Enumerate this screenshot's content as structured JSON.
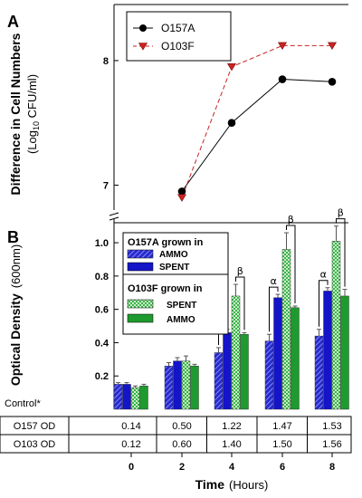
{
  "chart_data": [
    {
      "type": "line",
      "panel_label": "A",
      "ylabel": "Difference in Cell Numbers",
      "ylabel_unit_prefix": "(Log",
      "ylabel_unit_sub": "10",
      "ylabel_unit_suffix": " CFU/ml)",
      "ylim": [
        6.8,
        8.45
      ],
      "yticks": [
        "7",
        "8"
      ],
      "x": [
        2,
        4,
        6,
        8
      ],
      "series": [
        {
          "name": "O157A",
          "values": [
            6.95,
            7.5,
            7.85,
            7.83
          ],
          "color": "#000000",
          "marker": "circle",
          "line": "solid"
        },
        {
          "name": "O103F",
          "values": [
            6.9,
            7.95,
            8.12,
            8.12
          ],
          "color": "#cc2222",
          "marker": "triangle-down",
          "line": "dashed"
        }
      ]
    },
    {
      "type": "bar",
      "panel_label": "B",
      "ylabel": "Optical Density",
      "ylabel_unit": "(600nm)",
      "ylim": [
        0,
        1.12
      ],
      "yticks": [
        "0.2",
        "0.4",
        "0.6",
        "0.8",
        "1.0"
      ],
      "xlabel": "Time",
      "xlabel_unit": "(Hours)",
      "categories": [
        "0",
        "2",
        "4",
        "6",
        "8"
      ],
      "legend_groups": [
        {
          "title": "O157A grown in",
          "entries": [
            "AMMO",
            "SPENT"
          ]
        },
        {
          "title": "O103F grown in",
          "entries": [
            "SPENT",
            "AMMO"
          ]
        }
      ],
      "series": [
        {
          "name": "AMMO",
          "group": "O157A",
          "values": [
            0.15,
            0.26,
            0.34,
            0.41,
            0.44
          ],
          "errors": [
            0.01,
            0.02,
            0.03,
            0.04,
            0.04
          ],
          "color": "#1a1aa6",
          "pattern": "hatch"
        },
        {
          "name": "SPENT",
          "group": "O157A",
          "values": [
            0.15,
            0.29,
            0.46,
            0.67,
            0.71
          ],
          "errors": [
            0.01,
            0.02,
            0.02,
            0.02,
            0.02
          ],
          "color": "#1414c8",
          "pattern": "solid"
        },
        {
          "name": "SPENT",
          "group": "O103F",
          "values": [
            0.13,
            0.29,
            0.68,
            0.96,
            1.01
          ],
          "errors": [
            0.01,
            0.03,
            0.07,
            0.1,
            0.09
          ],
          "color": "#1e9a3a",
          "pattern": "checker"
        },
        {
          "name": "AMMO",
          "group": "O103F",
          "values": [
            0.14,
            0.26,
            0.45,
            0.61,
            0.68
          ],
          "errors": [
            0.01,
            0.01,
            0.01,
            0.01,
            0.04
          ],
          "color": "#1f9a2e",
          "pattern": "solid"
        }
      ],
      "significance": [
        {
          "category": "4",
          "symbols": [
            "α",
            "β"
          ]
        },
        {
          "category": "6",
          "symbols": [
            "α",
            "β"
          ]
        },
        {
          "category": "8",
          "symbols": [
            "α",
            "β"
          ]
        }
      ],
      "control_table": {
        "label": "Control*",
        "rows": [
          {
            "name": "O157 OD",
            "values": [
              "0.14",
              "0.50",
              "1.22",
              "1.47",
              "1.53"
            ]
          },
          {
            "name": "O103 OD",
            "values": [
              "0.12",
              "0.60",
              "1.40",
              "1.50",
              "1.56"
            ]
          }
        ]
      }
    }
  ]
}
